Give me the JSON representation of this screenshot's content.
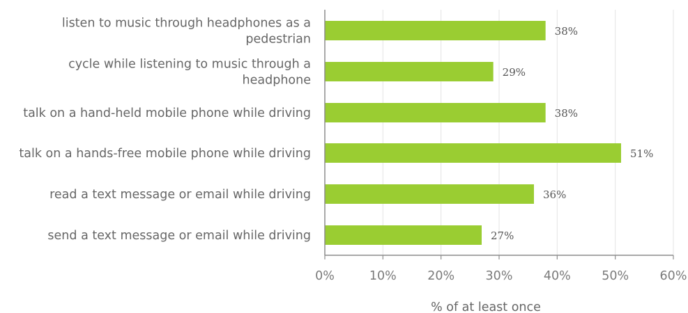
{
  "chart_data": {
    "type": "bar",
    "orientation": "horizontal",
    "categories": [
      [
        "listen to music through headphones as a",
        "pedestrian"
      ],
      [
        "cycle while listening to music through a",
        "headphone"
      ],
      [
        "talk on a hand-held mobile phone while driving"
      ],
      [
        "talk on a hands-free mobile phone while driving"
      ],
      [
        "read a text message or email while driving"
      ],
      [
        "send a text message or email while driving"
      ]
    ],
    "values": [
      38,
      29,
      38,
      51,
      36,
      27
    ],
    "data_labels": [
      "38%",
      "29%",
      "38%",
      "51%",
      "36%",
      "27%"
    ],
    "xlim": [
      0,
      60
    ],
    "x_ticks": [
      0,
      10,
      20,
      30,
      40,
      50,
      60
    ],
    "x_tick_labels": [
      "0%",
      "10%",
      "20%",
      "30%",
      "40%",
      "50%",
      "60%"
    ],
    "xlabel": "% of at least once",
    "grid": true,
    "colors": {
      "bar": "#9acd32",
      "grid": "#e3e3e3",
      "axis": "#8c8c8c"
    }
  }
}
